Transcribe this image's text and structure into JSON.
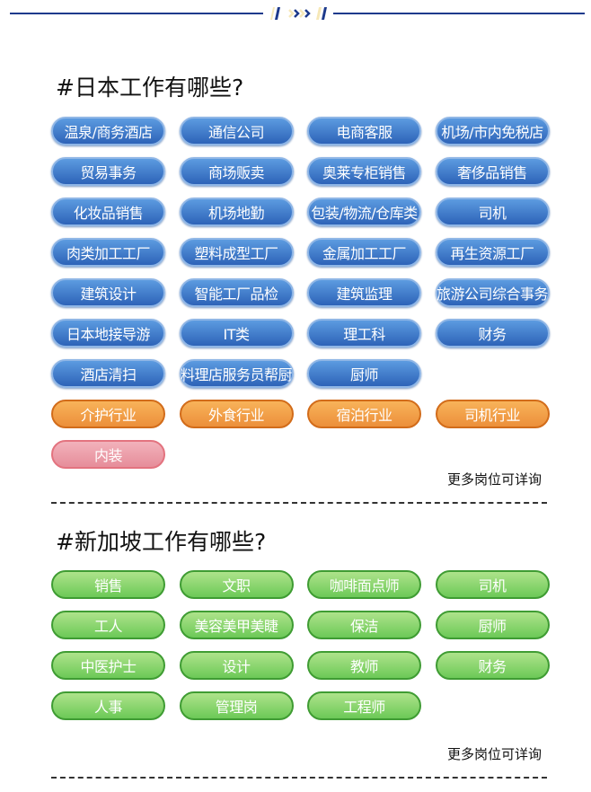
{
  "japan": {
    "title": "#日本工作有哪些?",
    "more": "更多岗位可详询",
    "jobs": [
      {
        "label": "温泉/商务酒店",
        "color": "blue"
      },
      {
        "label": "通信公司",
        "color": "blue"
      },
      {
        "label": "电商客服",
        "color": "blue"
      },
      {
        "label": "机场/市内免税店",
        "color": "blue"
      },
      {
        "label": "贸易事务",
        "color": "blue"
      },
      {
        "label": "商场贩卖",
        "color": "blue"
      },
      {
        "label": "奥莱专柜销售",
        "color": "blue"
      },
      {
        "label": "奢侈品销售",
        "color": "blue"
      },
      {
        "label": "化妆品销售",
        "color": "blue"
      },
      {
        "label": "机场地勤",
        "color": "blue"
      },
      {
        "label": "包装/物流/仓库类",
        "color": "blue"
      },
      {
        "label": "司机",
        "color": "blue"
      },
      {
        "label": "肉类加工工厂",
        "color": "blue"
      },
      {
        "label": "塑料成型工厂",
        "color": "blue"
      },
      {
        "label": "金属加工工厂",
        "color": "blue"
      },
      {
        "label": "再生资源工厂",
        "color": "blue"
      },
      {
        "label": "建筑设计",
        "color": "blue"
      },
      {
        "label": "智能工厂品检",
        "color": "blue"
      },
      {
        "label": "建筑监理",
        "color": "blue"
      },
      {
        "label": "旅游公司综合事务",
        "color": "blue"
      },
      {
        "label": "日本地接导游",
        "color": "blue"
      },
      {
        "label": "IT类",
        "color": "blue"
      },
      {
        "label": "理工科",
        "color": "blue"
      },
      {
        "label": "财务",
        "color": "blue"
      },
      {
        "label": "酒店清扫",
        "color": "blue"
      },
      {
        "label": "料理店服务员帮厨",
        "color": "blue"
      },
      {
        "label": "厨师",
        "color": "blue"
      },
      null,
      {
        "label": "介护行业",
        "color": "orange"
      },
      {
        "label": "外食行业",
        "color": "orange"
      },
      {
        "label": "宿泊行业",
        "color": "orange"
      },
      {
        "label": "司机行业",
        "color": "orange"
      },
      {
        "label": "内装",
        "color": "pink"
      }
    ]
  },
  "singapore": {
    "title": "#新加坡工作有哪些?",
    "more": "更多岗位可详询",
    "jobs": [
      {
        "label": "销售",
        "color": "green"
      },
      {
        "label": "文职",
        "color": "green"
      },
      {
        "label": "咖啡面点师",
        "color": "green"
      },
      {
        "label": "司机",
        "color": "green"
      },
      {
        "label": "工人",
        "color": "green"
      },
      {
        "label": "美容美甲美睫",
        "color": "green"
      },
      {
        "label": "保洁",
        "color": "green"
      },
      {
        "label": "厨师",
        "color": "green"
      },
      {
        "label": "中医护士",
        "color": "green"
      },
      {
        "label": "设计",
        "color": "green"
      },
      {
        "label": "教师",
        "color": "green"
      },
      {
        "label": "财务",
        "color": "green"
      },
      {
        "label": "人事",
        "color": "green"
      },
      {
        "label": "管理岗",
        "color": "green"
      },
      {
        "label": "工程师",
        "color": "green"
      }
    ]
  },
  "colors": {
    "navy": "#1d3a8c",
    "blue": "#3d78c9",
    "orange": "#f0a048",
    "pink": "#e99aa6",
    "green": "#7dd066"
  }
}
